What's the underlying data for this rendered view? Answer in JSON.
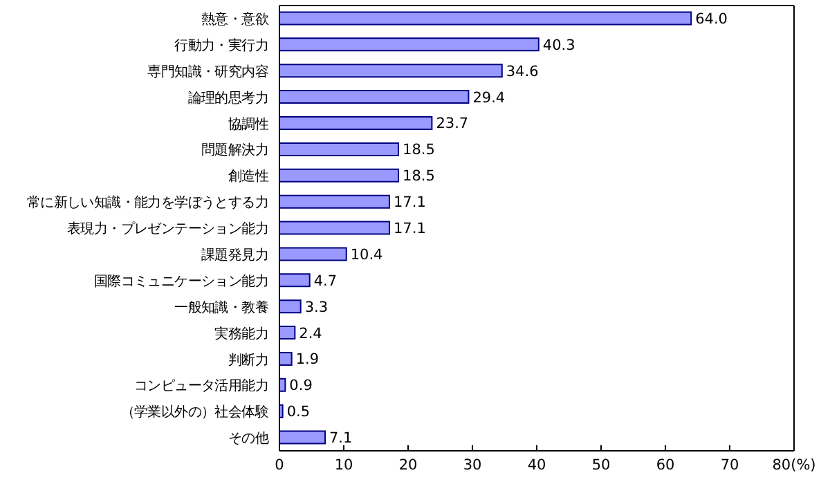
{
  "chart_data": {
    "type": "bar",
    "orientation": "horizontal",
    "categories": [
      "熱意・意欲",
      "行動力・実行力",
      "専門知識・研究内容",
      "論理的思考力",
      "協調性",
      "問題解決力",
      "創造性",
      "常に新しい知識・能力を学ぼうとする力",
      "表現力・プレゼンテーション能力",
      "課題発見力",
      "国際コミュニケーション能力",
      "一般知識・教養",
      "実務能力",
      "判断力",
      "コンピュータ活用能力",
      "（学業以外の）社会体験",
      "その他"
    ],
    "values": [
      64.0,
      40.3,
      34.6,
      29.4,
      23.7,
      18.5,
      18.5,
      17.1,
      17.1,
      10.4,
      4.7,
      3.3,
      2.4,
      1.9,
      0.9,
      0.5,
      7.1
    ],
    "value_labels": [
      "64.0",
      "40.3",
      "34.6",
      "29.4",
      "23.7",
      "18.5",
      "18.5",
      "17.1",
      "17.1",
      "10.4",
      "4.7",
      "3.3",
      "2.4",
      "1.9",
      "0.9",
      "0.5",
      "7.1"
    ],
    "color": "#9999ff",
    "xlim": [
      0,
      80
    ],
    "xticks": [
      0,
      10,
      20,
      30,
      40,
      50,
      60,
      70,
      {
        "value": 80,
        "label": "80(%)"
      }
    ],
    "grid": false
  }
}
